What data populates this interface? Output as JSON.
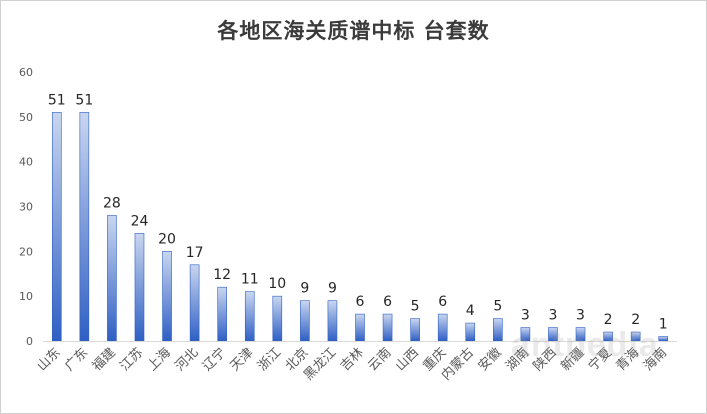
{
  "watermark": "antpedia",
  "chart_data": {
    "type": "bar",
    "title": "各地区海关质谱中标 台套数",
    "xlabel": "",
    "ylabel": "",
    "ylim": [
      0,
      60
    ],
    "yticks": [
      0,
      10,
      20,
      30,
      40,
      50,
      60
    ],
    "grid": false,
    "legend": "none",
    "bar_color_top": "#c9d6ef",
    "bar_color_bottom": "#2f5fc4",
    "categories": [
      "山东",
      "广东",
      "福建",
      "江苏",
      "上海",
      "河北",
      "辽宁",
      "天津",
      "浙江",
      "北京",
      "黑龙江",
      "吉林",
      "云南",
      "山西",
      "重庆",
      "内蒙古",
      "安徽",
      "湖南",
      "陕西",
      "新疆",
      "宁夏",
      "青海",
      "海南"
    ],
    "values": [
      51,
      51,
      28,
      24,
      20,
      17,
      12,
      11,
      10,
      9,
      9,
      6,
      6,
      5,
      6,
      4,
      5,
      3,
      3,
      3,
      2,
      2,
      1
    ]
  }
}
